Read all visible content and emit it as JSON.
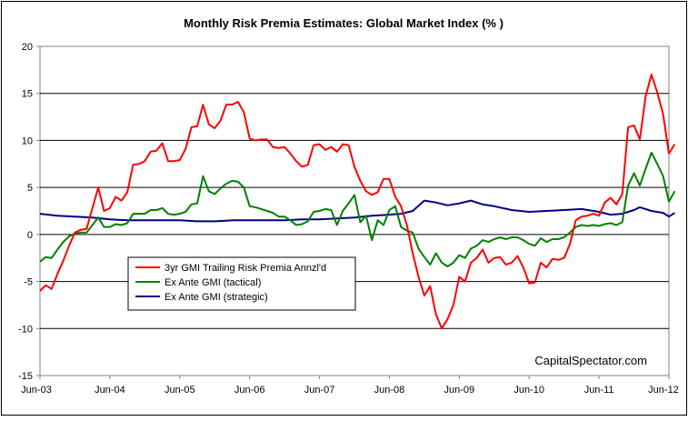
{
  "chart_data": {
    "type": "line",
    "title": "Monthly Risk Premia Estimates: Global Market Index (% )",
    "xlabel": "",
    "ylabel": "",
    "ylim": [
      -15,
      20
    ],
    "yticks": [
      -15,
      -10,
      -5,
      0,
      5,
      10,
      15,
      20
    ],
    "xlim": [
      "2003-06",
      "2012-06"
    ],
    "xticks": [
      "Jun-03",
      "Jun-04",
      "Jun-05",
      "Jun-06",
      "Jun-07",
      "Jun-08",
      "Jun-09",
      "Jun-10",
      "Jun-11",
      "Jun-12"
    ],
    "grid": "horizontal",
    "legend_placement": "center-left",
    "annotation": "CapitalSpectator.com",
    "series": [
      {
        "name": "3yr GMI Trailing Risk Premia Annzl'd",
        "color": "#ff0000",
        "points": [
          [
            "2003-06",
            -6.0
          ],
          [
            "2003-07",
            -5.4
          ],
          [
            "2003-08",
            -5.8
          ],
          [
            "2003-09",
            -4.2
          ],
          [
            "2003-10",
            -2.8
          ],
          [
            "2003-11",
            -1.2
          ],
          [
            "2003-12",
            0.2
          ],
          [
            "2004-01",
            0.5
          ],
          [
            "2004-02",
            0.6
          ],
          [
            "2004-03",
            2.8
          ],
          [
            "2004-04",
            5.0
          ],
          [
            "2004-05",
            2.5
          ],
          [
            "2004-06",
            2.8
          ],
          [
            "2004-07",
            4.0
          ],
          [
            "2004-08",
            3.6
          ],
          [
            "2004-09",
            4.5
          ],
          [
            "2004-10",
            7.4
          ],
          [
            "2004-11",
            7.5
          ],
          [
            "2004-12",
            7.8
          ],
          [
            "2005-01",
            8.8
          ],
          [
            "2005-02",
            8.9
          ],
          [
            "2005-03",
            9.7
          ],
          [
            "2005-04",
            7.8
          ],
          [
            "2005-05",
            7.8
          ],
          [
            "2005-06",
            7.9
          ],
          [
            "2005-07",
            9.1
          ],
          [
            "2005-08",
            11.4
          ],
          [
            "2005-09",
            11.5
          ],
          [
            "2005-10",
            13.8
          ],
          [
            "2005-11",
            11.7
          ],
          [
            "2005-12",
            11.3
          ],
          [
            "2006-01",
            12.1
          ],
          [
            "2006-02",
            13.8
          ],
          [
            "2006-03",
            13.8
          ],
          [
            "2006-04",
            14.1
          ],
          [
            "2006-05",
            13.0
          ],
          [
            "2006-06",
            10.2
          ],
          [
            "2006-07",
            10.0
          ],
          [
            "2006-08",
            10.1
          ],
          [
            "2006-09",
            10.1
          ],
          [
            "2006-10",
            9.3
          ],
          [
            "2006-11",
            9.2
          ],
          [
            "2006-12",
            9.3
          ],
          [
            "2007-01",
            8.6
          ],
          [
            "2007-02",
            7.8
          ],
          [
            "2007-03",
            7.2
          ],
          [
            "2007-04",
            7.4
          ],
          [
            "2007-05",
            9.5
          ],
          [
            "2007-06",
            9.6
          ],
          [
            "2007-07",
            9.0
          ],
          [
            "2007-08",
            9.3
          ],
          [
            "2007-09",
            8.8
          ],
          [
            "2007-10",
            9.6
          ],
          [
            "2007-11",
            9.5
          ],
          [
            "2007-12",
            7.2
          ],
          [
            "2008-01",
            5.7
          ],
          [
            "2008-02",
            4.6
          ],
          [
            "2008-03",
            4.2
          ],
          [
            "2008-04",
            4.5
          ],
          [
            "2008-05",
            5.9
          ],
          [
            "2008-06",
            5.9
          ],
          [
            "2008-07",
            4.0
          ],
          [
            "2008-08",
            3.0
          ],
          [
            "2008-09",
            1.0
          ],
          [
            "2008-10",
            -2.0
          ],
          [
            "2008-11",
            -4.5
          ],
          [
            "2008-12",
            -6.5
          ],
          [
            "2009-01",
            -5.5
          ],
          [
            "2009-02",
            -8.5
          ],
          [
            "2009-03",
            -10.0
          ],
          [
            "2009-04",
            -9.0
          ],
          [
            "2009-05",
            -7.5
          ],
          [
            "2009-06",
            -4.5
          ],
          [
            "2009-07",
            -5.0
          ],
          [
            "2009-08",
            -3.0
          ],
          [
            "2009-09",
            -2.5
          ],
          [
            "2009-10",
            -1.6
          ],
          [
            "2009-11",
            -3.0
          ],
          [
            "2009-12",
            -2.5
          ],
          [
            "2010-01",
            -2.4
          ],
          [
            "2010-02",
            -3.2
          ],
          [
            "2010-03",
            -3.0
          ],
          [
            "2010-04",
            -2.3
          ],
          [
            "2010-05",
            -3.5
          ],
          [
            "2010-06",
            -5.2
          ],
          [
            "2010-07",
            -5.1
          ],
          [
            "2010-08",
            -3.0
          ],
          [
            "2010-09",
            -3.5
          ],
          [
            "2010-10",
            -2.6
          ],
          [
            "2010-11",
            -2.7
          ],
          [
            "2010-12",
            -2.5
          ],
          [
            "2011-01",
            -1.0
          ],
          [
            "2011-02",
            1.5
          ],
          [
            "2011-03",
            1.9
          ],
          [
            "2011-04",
            2.0
          ],
          [
            "2011-05",
            2.2
          ],
          [
            "2011-06",
            2.0
          ],
          [
            "2011-07",
            3.4
          ],
          [
            "2011-08",
            3.9
          ],
          [
            "2011-09",
            3.2
          ],
          [
            "2011-10",
            4.3
          ],
          [
            "2011-11",
            11.4
          ],
          [
            "2011-12",
            11.6
          ],
          [
            "2012-01",
            10.1
          ],
          [
            "2012-02",
            14.7
          ],
          [
            "2012-03",
            17.0
          ],
          [
            "2012-04",
            15.1
          ],
          [
            "2012-05",
            12.8
          ],
          [
            "2012-06",
            8.6
          ],
          [
            "2012-07",
            9.6
          ]
        ]
      },
      {
        "name": "Ex Ante GMI (tactical)",
        "color": "#008000",
        "points": [
          [
            "2003-06",
            -2.9
          ],
          [
            "2003-07",
            -2.4
          ],
          [
            "2003-08",
            -2.5
          ],
          [
            "2003-09",
            -1.6
          ],
          [
            "2003-10",
            -0.8
          ],
          [
            "2003-11",
            -0.2
          ],
          [
            "2003-12",
            0.1
          ],
          [
            "2004-01",
            0.2
          ],
          [
            "2004-02",
            0.2
          ],
          [
            "2004-03",
            1.0
          ],
          [
            "2004-04",
            1.8
          ],
          [
            "2004-05",
            0.8
          ],
          [
            "2004-06",
            0.8
          ],
          [
            "2004-07",
            1.1
          ],
          [
            "2004-08",
            1.0
          ],
          [
            "2004-09",
            1.2
          ],
          [
            "2004-10",
            2.2
          ],
          [
            "2004-11",
            2.2
          ],
          [
            "2004-12",
            2.2
          ],
          [
            "2005-01",
            2.6
          ],
          [
            "2005-02",
            2.6
          ],
          [
            "2005-03",
            2.8
          ],
          [
            "2005-04",
            2.2
          ],
          [
            "2005-05",
            2.1
          ],
          [
            "2005-06",
            2.2
          ],
          [
            "2005-07",
            2.4
          ],
          [
            "2005-08",
            3.2
          ],
          [
            "2005-09",
            3.3
          ],
          [
            "2005-10",
            6.2
          ],
          [
            "2005-11",
            4.6
          ],
          [
            "2005-12",
            4.3
          ],
          [
            "2006-01",
            4.9
          ],
          [
            "2006-02",
            5.4
          ],
          [
            "2006-03",
            5.7
          ],
          [
            "2006-04",
            5.6
          ],
          [
            "2006-05",
            5.0
          ],
          [
            "2006-06",
            3.0
          ],
          [
            "2006-07",
            2.9
          ],
          [
            "2006-08",
            2.7
          ],
          [
            "2006-09",
            2.5
          ],
          [
            "2006-10",
            2.3
          ],
          [
            "2006-11",
            1.9
          ],
          [
            "2006-12",
            1.9
          ],
          [
            "2007-01",
            1.5
          ],
          [
            "2007-02",
            1.0
          ],
          [
            "2007-03",
            1.1
          ],
          [
            "2007-04",
            1.4
          ],
          [
            "2007-05",
            2.4
          ],
          [
            "2007-06",
            2.5
          ],
          [
            "2007-07",
            2.7
          ],
          [
            "2007-08",
            2.6
          ],
          [
            "2007-09",
            1.0
          ],
          [
            "2007-10",
            2.5
          ],
          [
            "2007-11",
            3.3
          ],
          [
            "2007-12",
            4.2
          ],
          [
            "2008-01",
            1.3
          ],
          [
            "2008-02",
            2.0
          ],
          [
            "2008-03",
            -0.6
          ],
          [
            "2008-04",
            1.5
          ],
          [
            "2008-05",
            1.0
          ],
          [
            "2008-06",
            2.6
          ],
          [
            "2008-07",
            3.0
          ],
          [
            "2008-08",
            0.8
          ],
          [
            "2008-09",
            0.4
          ],
          [
            "2008-10",
            0.2
          ],
          [
            "2008-11",
            -1.5
          ],
          [
            "2008-12",
            -2.4
          ],
          [
            "2009-01",
            -3.2
          ],
          [
            "2009-02",
            -2.0
          ],
          [
            "2009-03",
            -3.0
          ],
          [
            "2009-04",
            -3.4
          ],
          [
            "2009-05",
            -3.0
          ],
          [
            "2009-06",
            -2.2
          ],
          [
            "2009-07",
            -2.5
          ],
          [
            "2009-08",
            -1.5
          ],
          [
            "2009-09",
            -1.2
          ],
          [
            "2009-10",
            -0.6
          ],
          [
            "2009-11",
            -0.8
          ],
          [
            "2009-12",
            -0.5
          ],
          [
            "2010-01",
            -0.3
          ],
          [
            "2010-02",
            -0.5
          ],
          [
            "2010-03",
            -0.3
          ],
          [
            "2010-04",
            -0.3
          ],
          [
            "2010-05",
            -0.6
          ],
          [
            "2010-06",
            -1.0
          ],
          [
            "2010-07",
            -1.2
          ],
          [
            "2010-08",
            -0.4
          ],
          [
            "2010-09",
            -0.8
          ],
          [
            "2010-10",
            -0.5
          ],
          [
            "2010-11",
            -0.5
          ],
          [
            "2010-12",
            -0.3
          ],
          [
            "2011-01",
            0.2
          ],
          [
            "2011-02",
            0.8
          ],
          [
            "2011-03",
            1.0
          ],
          [
            "2011-04",
            0.9
          ],
          [
            "2011-05",
            1.0
          ],
          [
            "2011-06",
            0.9
          ],
          [
            "2011-07",
            1.1
          ],
          [
            "2011-08",
            1.2
          ],
          [
            "2011-09",
            1.0
          ],
          [
            "2011-10",
            1.3
          ],
          [
            "2011-11",
            5.2
          ],
          [
            "2011-12",
            6.5
          ],
          [
            "2012-01",
            5.2
          ],
          [
            "2012-02",
            7.0
          ],
          [
            "2012-03",
            8.7
          ],
          [
            "2012-04",
            7.5
          ],
          [
            "2012-05",
            6.2
          ],
          [
            "2012-06",
            3.5
          ],
          [
            "2012-07",
            4.6
          ]
        ]
      },
      {
        "name": "Ex Ante GMI (strategic)",
        "color": "#000080",
        "points": [
          [
            "2003-06",
            2.2
          ],
          [
            "2003-09",
            2.0
          ],
          [
            "2003-12",
            1.9
          ],
          [
            "2004-03",
            1.8
          ],
          [
            "2004-06",
            1.6
          ],
          [
            "2004-09",
            1.5
          ],
          [
            "2004-12",
            1.5
          ],
          [
            "2005-03",
            1.5
          ],
          [
            "2005-06",
            1.5
          ],
          [
            "2005-09",
            1.4
          ],
          [
            "2005-12",
            1.4
          ],
          [
            "2006-03",
            1.5
          ],
          [
            "2006-06",
            1.5
          ],
          [
            "2006-09",
            1.5
          ],
          [
            "2006-12",
            1.5
          ],
          [
            "2007-03",
            1.6
          ],
          [
            "2007-06",
            1.6
          ],
          [
            "2007-09",
            1.7
          ],
          [
            "2007-12",
            1.8
          ],
          [
            "2008-03",
            2.0
          ],
          [
            "2008-06",
            2.1
          ],
          [
            "2008-08",
            2.2
          ],
          [
            "2008-10",
            2.5
          ],
          [
            "2008-12",
            3.6
          ],
          [
            "2009-02",
            3.4
          ],
          [
            "2009-04",
            3.1
          ],
          [
            "2009-06",
            3.3
          ],
          [
            "2009-08",
            3.6
          ],
          [
            "2009-10",
            3.2
          ],
          [
            "2009-12",
            3.0
          ],
          [
            "2010-03",
            2.6
          ],
          [
            "2010-06",
            2.4
          ],
          [
            "2010-09",
            2.5
          ],
          [
            "2010-12",
            2.6
          ],
          [
            "2011-03",
            2.7
          ],
          [
            "2011-06",
            2.4
          ],
          [
            "2011-08",
            2.1
          ],
          [
            "2011-10",
            2.2
          ],
          [
            "2011-12",
            2.6
          ],
          [
            "2012-01",
            2.9
          ],
          [
            "2012-03",
            2.5
          ],
          [
            "2012-05",
            2.3
          ],
          [
            "2012-06",
            1.9
          ],
          [
            "2012-07",
            2.3
          ]
        ]
      }
    ]
  }
}
